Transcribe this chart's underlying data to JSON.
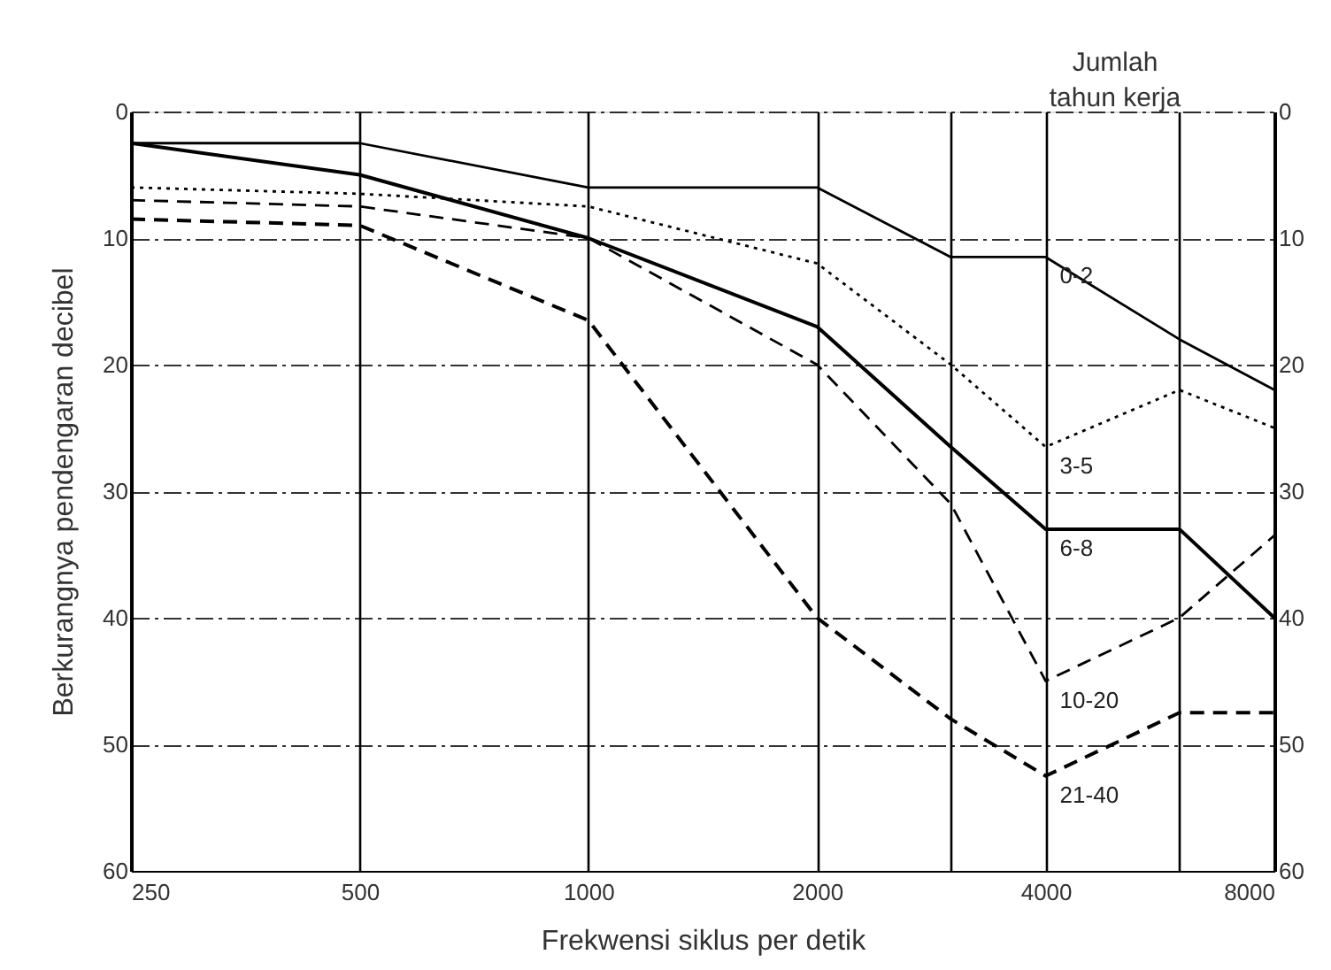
{
  "chart_data": {
    "type": "line",
    "legend_title": "Jumlah tahun kerja",
    "xlabel": "Frekwensi siklus per detik",
    "ylabel": "Berkurangnya pendengaran decibel",
    "x": [
      250,
      500,
      1000,
      2000,
      3000,
      4000,
      6000,
      8000
    ],
    "series": [
      {
        "name": "0-2",
        "color": "#000000",
        "line_style": "solid",
        "values": [
          2.5,
          2.5,
          6,
          6,
          11.5,
          11.5,
          18,
          22
        ]
      },
      {
        "name": "3-5",
        "color": "#000000",
        "line_style": "dotted",
        "values": [
          6,
          6.5,
          7.5,
          12,
          20,
          26.5,
          22,
          25
        ]
      },
      {
        "name": "6-8",
        "color": "#000000",
        "line_style": "solid",
        "values": [
          2.5,
          5,
          10,
          17,
          26.5,
          33,
          33,
          40
        ]
      },
      {
        "name": "10-20",
        "color": "#000000",
        "line_style": "dashed",
        "values": [
          7,
          7.5,
          10,
          20,
          31,
          45,
          40,
          33.5
        ]
      },
      {
        "name": "21-40",
        "color": "#000000",
        "line_style": "dashed",
        "values": [
          8.5,
          9,
          16.5,
          40,
          48,
          52.5,
          47.5,
          47.5
        ]
      }
    ],
    "log": "x",
    "xlim": [
      250,
      8000
    ],
    "xticks": [
      250,
      500,
      1000,
      2000,
      {
        "value": 3000,
        "label": null
      },
      4000,
      {
        "value": 6000,
        "label": null
      },
      8000
    ],
    "ylim": [
      60,
      0
    ],
    "yticks": [
      0,
      10,
      20,
      30,
      40,
      50,
      60
    ],
    "y2lim": [
      60,
      0
    ],
    "y2ticks": [
      0,
      10,
      20,
      30,
      40,
      50,
      60
    ],
    "grid": true,
    "marker": "none"
  }
}
